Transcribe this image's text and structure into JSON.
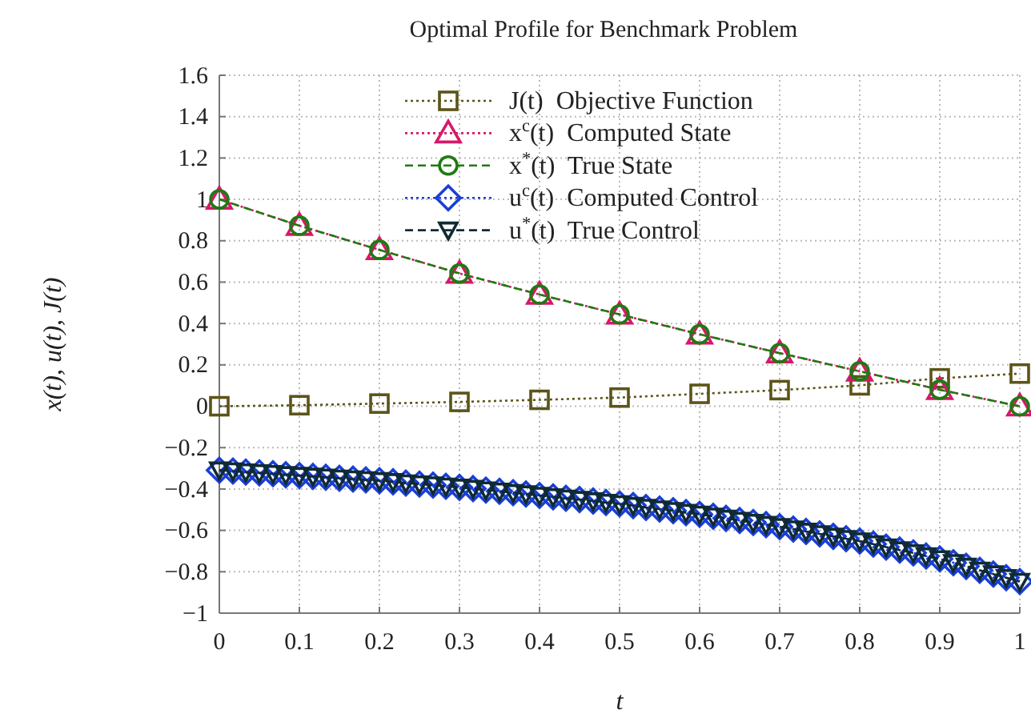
{
  "chart_data": {
    "type": "line",
    "title": "Optimal Profile for Benchmark Problem",
    "xlabel": "t",
    "ylabel": "x(t), u(t), J(t)",
    "xlim": [
      0,
      1
    ],
    "xticks": [
      0,
      0.1,
      0.2,
      0.3,
      0.4,
      0.5,
      0.6,
      0.7,
      0.8,
      0.9,
      1
    ],
    "ylim": [
      -1,
      1.6
    ],
    "yticks": [
      {
        "value": -1,
        "label": "−1"
      },
      {
        "value": -0.8,
        "label": "−0.8"
      },
      {
        "value": -0.6,
        "label": "−0.6"
      },
      {
        "value": -0.4,
        "label": "−0.4"
      },
      {
        "value": -0.2,
        "label": "−0.2"
      },
      0,
      0.2,
      0.4,
      0.6,
      0.8,
      1,
      1.2,
      1.4,
      1.6
    ],
    "grid": true,
    "legend": "top",
    "series": [
      {
        "name": "J(t)  Objective Function",
        "color": "#5c5418",
        "marker": "square",
        "line_style": "dotted",
        "x": [
          0,
          0.1,
          0.2,
          0.3,
          0.4,
          0.5,
          0.6,
          0.7,
          0.8,
          0.9,
          1
        ],
        "values": [
          0,
          0.005,
          0.013,
          0.021,
          0.031,
          0.042,
          0.06,
          0.078,
          0.101,
          0.135,
          0.158
        ]
      },
      {
        "name": "x$^{c}$(t)  Computed State",
        "color": "#d6186a",
        "marker": "triangle",
        "line_style": "dotted",
        "x": [
          0,
          0.1,
          0.2,
          0.3,
          0.4,
          0.5,
          0.6,
          0.7,
          0.8,
          0.9,
          1
        ],
        "values": [
          1,
          0.873,
          0.756,
          0.642,
          0.54,
          0.444,
          0.348,
          0.257,
          0.169,
          0.08,
          0
        ]
      },
      {
        "name": "x$^{*}$(t)  True State",
        "color": "#1f7a12",
        "marker": "circle",
        "line_style": "dashed",
        "x": [
          0,
          0.1,
          0.2,
          0.3,
          0.4,
          0.5,
          0.6,
          0.7,
          0.8,
          0.9,
          1
        ],
        "values": [
          1,
          0.873,
          0.756,
          0.642,
          0.54,
          0.444,
          0.348,
          0.257,
          0.169,
          0.08,
          0
        ]
      },
      {
        "name": "u$^{c}$(t)  Computed Control",
        "color": "#1a3fd6",
        "marker": "diamond",
        "line_style": "dotted",
        "x": [
          0,
          0.017,
          0.033,
          0.05,
          0.067,
          0.083,
          0.1,
          0.117,
          0.133,
          0.15,
          0.167,
          0.183,
          0.2,
          0.217,
          0.233,
          0.25,
          0.267,
          0.283,
          0.3,
          0.317,
          0.333,
          0.35,
          0.367,
          0.383,
          0.4,
          0.417,
          0.433,
          0.45,
          0.467,
          0.483,
          0.5,
          0.517,
          0.533,
          0.55,
          0.567,
          0.583,
          0.6,
          0.617,
          0.633,
          0.65,
          0.667,
          0.683,
          0.7,
          0.717,
          0.733,
          0.75,
          0.767,
          0.783,
          0.8,
          0.817,
          0.833,
          0.85,
          0.867,
          0.883,
          0.9,
          0.917,
          0.933,
          0.95,
          0.967,
          0.983,
          1
        ],
        "values": [
          -0.309,
          -0.313,
          -0.318,
          -0.322,
          -0.326,
          -0.331,
          -0.335,
          -0.339,
          -0.343,
          -0.348,
          -0.352,
          -0.356,
          -0.36,
          -0.365,
          -0.371,
          -0.376,
          -0.381,
          -0.387,
          -0.392,
          -0.398,
          -0.405,
          -0.411,
          -0.418,
          -0.424,
          -0.431,
          -0.438,
          -0.445,
          -0.451,
          -0.458,
          -0.465,
          -0.472,
          -0.48,
          -0.489,
          -0.497,
          -0.505,
          -0.514,
          -0.522,
          -0.532,
          -0.542,
          -0.552,
          -0.562,
          -0.572,
          -0.582,
          -0.594,
          -0.605,
          -0.617,
          -0.629,
          -0.64,
          -0.652,
          -0.666,
          -0.681,
          -0.695,
          -0.709,
          -0.724,
          -0.738,
          -0.756,
          -0.774,
          -0.793,
          -0.811,
          -0.829,
          -0.847
        ]
      },
      {
        "name": "u$^{*}$(t)  True Control",
        "color": "#102a32",
        "marker": "triangle-down",
        "line_style": "dashed",
        "x": [
          0,
          0.017,
          0.033,
          0.05,
          0.067,
          0.083,
          0.1,
          0.117,
          0.133,
          0.15,
          0.167,
          0.183,
          0.2,
          0.217,
          0.233,
          0.25,
          0.267,
          0.283,
          0.3,
          0.317,
          0.333,
          0.35,
          0.367,
          0.383,
          0.4,
          0.417,
          0.433,
          0.45,
          0.467,
          0.483,
          0.5,
          0.517,
          0.533,
          0.55,
          0.567,
          0.583,
          0.6,
          0.617,
          0.633,
          0.65,
          0.667,
          0.683,
          0.7,
          0.717,
          0.733,
          0.75,
          0.767,
          0.783,
          0.8,
          0.817,
          0.833,
          0.85,
          0.867,
          0.883,
          0.9,
          0.917,
          0.933,
          0.95,
          0.967,
          0.983,
          1
        ],
        "values": [
          -0.309,
          -0.313,
          -0.318,
          -0.322,
          -0.326,
          -0.331,
          -0.335,
          -0.339,
          -0.343,
          -0.348,
          -0.352,
          -0.356,
          -0.36,
          -0.365,
          -0.371,
          -0.376,
          -0.381,
          -0.387,
          -0.392,
          -0.398,
          -0.405,
          -0.411,
          -0.418,
          -0.424,
          -0.431,
          -0.438,
          -0.445,
          -0.451,
          -0.458,
          -0.465,
          -0.472,
          -0.48,
          -0.489,
          -0.497,
          -0.505,
          -0.514,
          -0.522,
          -0.532,
          -0.542,
          -0.552,
          -0.562,
          -0.572,
          -0.582,
          -0.594,
          -0.605,
          -0.617,
          -0.629,
          -0.64,
          -0.652,
          -0.666,
          -0.681,
          -0.695,
          -0.709,
          -0.724,
          -0.738,
          -0.756,
          -0.774,
          -0.793,
          -0.811,
          -0.829,
          -0.847
        ]
      }
    ]
  }
}
